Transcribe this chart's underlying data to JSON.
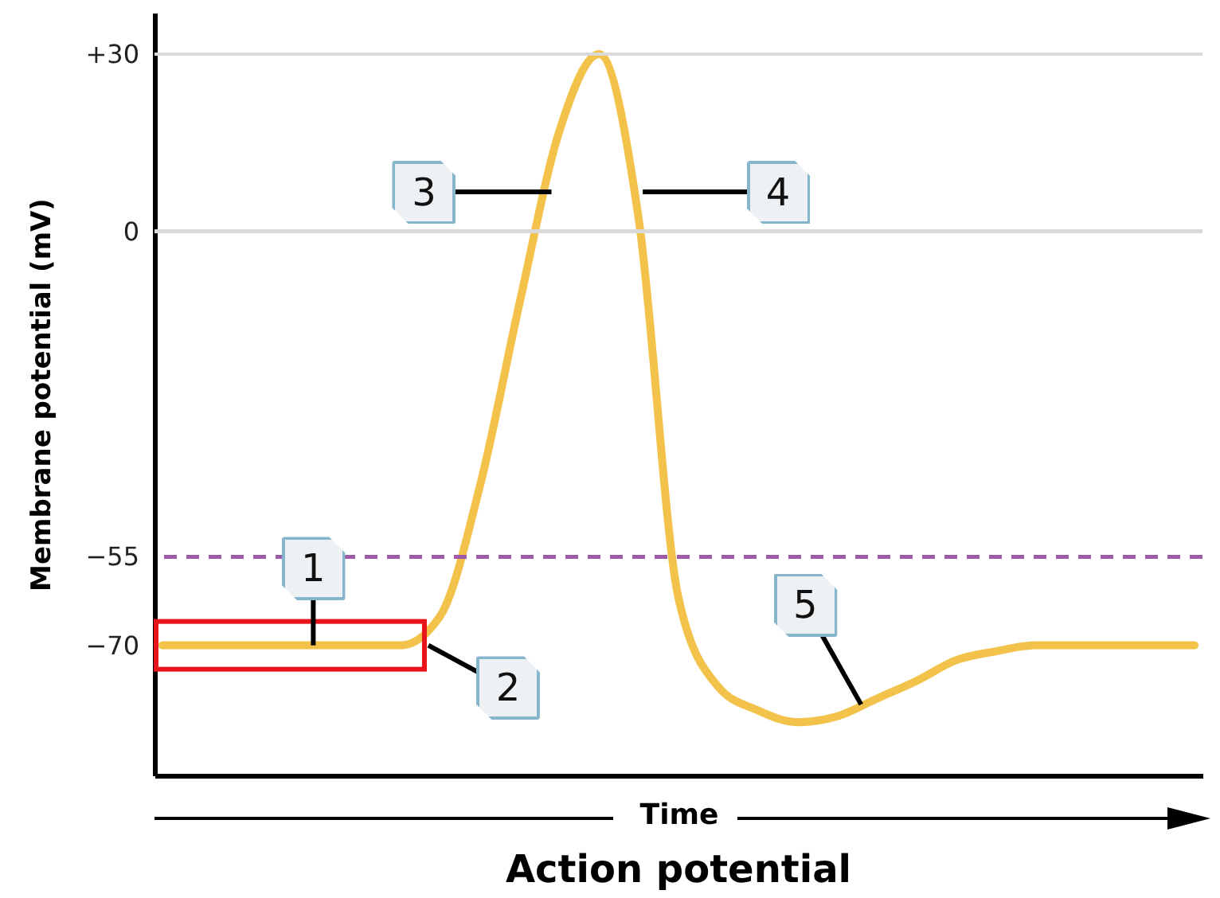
{
  "chart_data": {
    "type": "line",
    "title": "Action potential",
    "xlabel": "Time",
    "ylabel": "Membrane potential (mV)",
    "categories": [
      null,
      null,
      null,
      null,
      null,
      null,
      null,
      null,
      null,
      null,
      null,
      null,
      null,
      null,
      null,
      null,
      null,
      null,
      null,
      null,
      null,
      null,
      null,
      null,
      null,
      null,
      null
    ],
    "series": [
      {
        "color": "#f2c24a",
        "values": [
          -70,
          -70,
          -70,
          -70,
          -70,
          -70,
          -70,
          -65,
          -43,
          -12,
          17,
          30,
          2,
          -62,
          -77,
          -81,
          -83,
          -82,
          -79,
          -76,
          -72.5,
          -71,
          -70,
          -70,
          -70,
          -70,
          -70
        ]
      }
    ],
    "ylim": [
      -92,
      37
    ],
    "yticks": [
      {
        "value": -70,
        "label": "−70"
      },
      {
        "value": -55,
        "label": "−55"
      },
      0,
      {
        "value": 30,
        "label": "+30"
      }
    ],
    "tick_labels": "y",
    "marker": "none",
    "line_style": "solid",
    "ref_lines": [
      {
        "axis": "y",
        "value": 30,
        "color": "#d9d9d9",
        "line_style": "solid"
      },
      {
        "axis": "y",
        "value": 0,
        "color": "#d9d9d9",
        "line_style": "solid"
      },
      {
        "axis": "y",
        "value": -55,
        "color": "#a05aa8",
        "line_style": "dashed"
      }
    ],
    "annotations": [
      "1",
      "2",
      "3",
      "4",
      "5"
    ]
  }
}
